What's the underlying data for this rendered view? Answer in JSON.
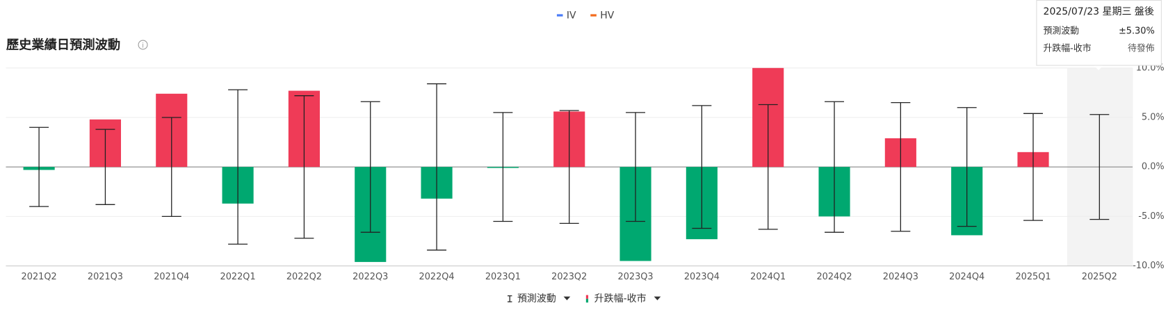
{
  "chart_data": {
    "type": "bar",
    "title": "歷史業績日預測波動",
    "indicators": [
      {
        "name": "IV",
        "color": "#4a7cf7"
      },
      {
        "name": "HV",
        "color": "#f26b1d"
      }
    ],
    "categories": [
      "2021Q2",
      "2021Q3",
      "2021Q4",
      "2022Q1",
      "2022Q2",
      "2022Q3",
      "2022Q4",
      "2023Q1",
      "2023Q2",
      "2023Q3",
      "2023Q4",
      "2024Q1",
      "2024Q2",
      "2024Q3",
      "2024Q4",
      "2025Q1",
      "2025Q2"
    ],
    "series": [
      {
        "name": "升跌幅-收市",
        "up_color": "#ef3b57",
        "down_color": "#00a870",
        "values": [
          -0.3,
          4.8,
          7.4,
          -3.7,
          7.7,
          -9.6,
          -3.2,
          -0.1,
          5.6,
          -9.5,
          -7.3,
          10.0,
          -5.0,
          2.9,
          -6.9,
          1.5,
          null
        ]
      },
      {
        "name": "預測波動",
        "color": "#222222",
        "values": [
          4.0,
          3.8,
          5.0,
          7.8,
          7.2,
          6.6,
          8.4,
          5.5,
          5.7,
          5.5,
          6.2,
          6.3,
          6.6,
          6.5,
          6.0,
          5.4,
          5.3
        ]
      }
    ],
    "ylim": [
      -10,
      10
    ],
    "yticks": [
      {
        "value": 10,
        "label": "10.0%"
      },
      {
        "value": 5,
        "label": "5.0%"
      },
      {
        "value": 0,
        "label": "0.0%"
      },
      {
        "value": -5,
        "label": "-5.0%"
      },
      {
        "value": -10,
        "label": "-10.0%"
      }
    ],
    "grid": true,
    "tooltip": {
      "title": "2025/07/23 星期三 盤後",
      "rows": [
        [
          "預測波動",
          "±5.30%"
        ],
        [
          "升跌幅-收市",
          "待發佈"
        ]
      ]
    }
  }
}
